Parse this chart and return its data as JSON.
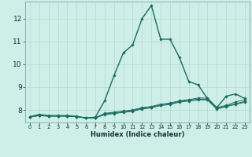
{
  "xlabel": "Humidex (Indice chaleur)",
  "background_color": "#ceeee8",
  "grid_color": "#b8d8d2",
  "line_color": "#1a6b60",
  "x_ticks": [
    0,
    1,
    2,
    3,
    4,
    5,
    6,
    7,
    8,
    9,
    10,
    11,
    12,
    13,
    14,
    15,
    16,
    17,
    18,
    19,
    20,
    21,
    22,
    23
  ],
  "y_ticks": [
    8,
    9,
    10,
    11,
    12
  ],
  "ylim": [
    7.45,
    12.75
  ],
  "xlim": [
    -0.5,
    23.5
  ],
  "series": [
    [
      7.7,
      7.8,
      7.75,
      7.75,
      7.75,
      7.72,
      7.65,
      7.68,
      8.4,
      9.5,
      10.5,
      10.85,
      12.0,
      12.58,
      11.1,
      11.1,
      10.3,
      9.25,
      9.1,
      8.5,
      8.1,
      8.6,
      8.7,
      8.5
    ],
    [
      7.7,
      7.75,
      7.73,
      7.73,
      7.73,
      7.7,
      7.65,
      7.65,
      7.85,
      7.9,
      7.95,
      8.0,
      8.1,
      8.15,
      8.25,
      8.3,
      8.4,
      8.45,
      8.52,
      8.52,
      8.1,
      8.2,
      8.35,
      8.45
    ],
    [
      7.7,
      7.75,
      7.73,
      7.73,
      7.73,
      7.7,
      7.65,
      7.65,
      7.82,
      7.87,
      7.92,
      7.97,
      8.07,
      8.12,
      8.22,
      8.27,
      8.37,
      8.42,
      8.47,
      8.47,
      8.07,
      8.17,
      8.27,
      8.37
    ],
    [
      7.7,
      7.75,
      7.73,
      7.73,
      7.73,
      7.7,
      7.65,
      7.65,
      7.79,
      7.84,
      7.89,
      7.94,
      8.04,
      8.09,
      8.19,
      8.24,
      8.34,
      8.39,
      8.44,
      8.44,
      8.04,
      8.14,
      8.24,
      8.34
    ]
  ]
}
